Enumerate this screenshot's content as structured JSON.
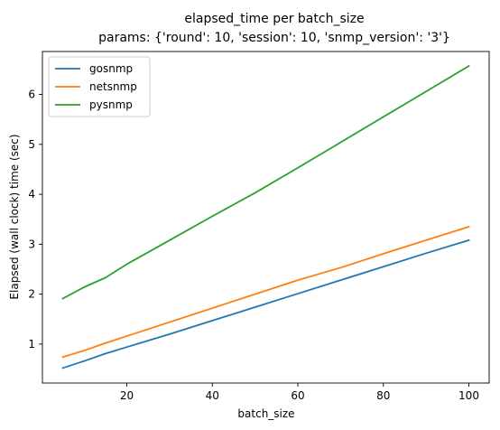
{
  "chart_data": {
    "type": "line",
    "title": "elapsed_time per batch_size",
    "subtitle": "params: {'round': 10, 'session': 10, 'snmp_version': '3'}",
    "xlabel": "batch_size",
    "ylabel": "Elapsed (wall clock) time (sec)",
    "xlim": [
      0.25,
      104.75
    ],
    "ylim": [
      0.22,
      6.86
    ],
    "xticks": [
      20,
      40,
      60,
      80,
      100
    ],
    "yticks": [
      1,
      2,
      3,
      4,
      5,
      6
    ],
    "grid": false,
    "legend_position": "top-left",
    "series": [
      {
        "name": "gosnmp",
        "color": "#1f77b4",
        "x": [
          5,
          10,
          15,
          20,
          30,
          40,
          50,
          60,
          70,
          80,
          90,
          100
        ],
        "y": [
          0.52,
          0.66,
          0.81,
          0.94,
          1.2,
          1.47,
          1.74,
          2.01,
          2.28,
          2.55,
          2.82,
          3.08
        ]
      },
      {
        "name": "netsnmp",
        "color": "#ff7f0e",
        "x": [
          5,
          10,
          15,
          20,
          30,
          40,
          50,
          60,
          70,
          80,
          90,
          100
        ],
        "y": [
          0.74,
          0.87,
          1.02,
          1.16,
          1.44,
          1.72,
          2.0,
          2.28,
          2.53,
          2.81,
          3.08,
          3.35
        ]
      },
      {
        "name": "pysnmp",
        "color": "#2ca02c",
        "x": [
          5,
          10,
          15,
          20,
          30,
          40,
          50,
          60,
          70,
          80,
          90,
          100
        ],
        "y": [
          1.91,
          2.14,
          2.33,
          2.6,
          3.08,
          3.56,
          4.03,
          4.53,
          5.04,
          5.55,
          6.06,
          6.57
        ]
      }
    ]
  }
}
